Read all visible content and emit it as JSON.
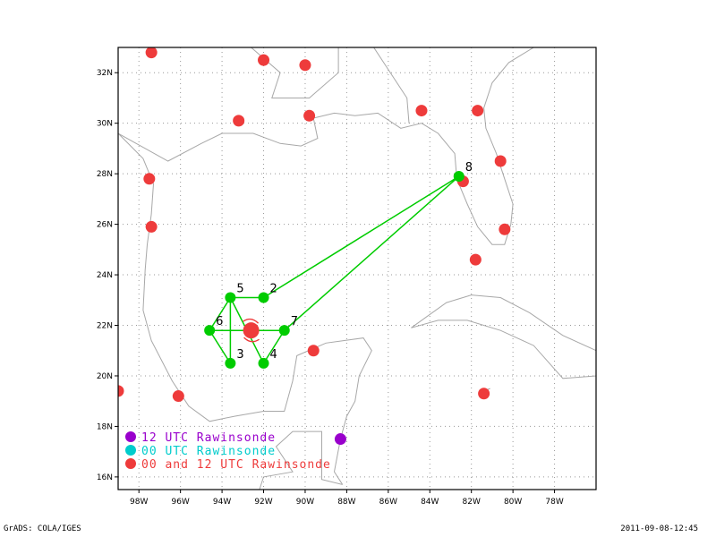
{
  "footer": {
    "left": "GrADS: COLA/IGES",
    "right": "2011-09-08-12:45"
  },
  "axes": {
    "lat_labels": [
      "16N",
      "18N",
      "20N",
      "22N",
      "24N",
      "26N",
      "28N",
      "30N",
      "32N"
    ],
    "lon_labels": [
      "98W",
      "96W",
      "94W",
      "92W",
      "90W",
      "88W",
      "86W",
      "84W",
      "82W",
      "80W",
      "78W"
    ],
    "lat_values": [
      16,
      18,
      20,
      22,
      24,
      26,
      28,
      30,
      32
    ],
    "lon_values": [
      -98,
      -96,
      -94,
      -92,
      -90,
      -88,
      -86,
      -84,
      -82,
      -80,
      -78
    ],
    "lon_range": [
      -99,
      -76
    ],
    "lat_range": [
      15.5,
      33
    ],
    "grid": true
  },
  "legend": [
    {
      "label": "12 UTC Rawinsonde",
      "color": "#9900cc"
    },
    {
      "label": "00 UTC Rawinsonde",
      "color": "#00cccc"
    },
    {
      "label": "00 and 12 UTC Rawinsonde",
      "color": "#ee3b3b"
    }
  ],
  "colors": {
    "coast": "#a8a8a8",
    "grid": "#999999",
    "track": "#00cc00",
    "rawinsonde_both": "#ee3b3b",
    "rawinsonde_12": "#9900cc",
    "storm_center": "#ee3b3b"
  },
  "storm_center": {
    "lon": -92.6,
    "lat": 21.8
  },
  "drop_points": [
    {
      "id": "2",
      "lon": -92.0,
      "lat": 23.1
    },
    {
      "id": "3",
      "lon": -93.6,
      "lat": 20.5
    },
    {
      "id": "4",
      "lon": -92.0,
      "lat": 20.5
    },
    {
      "id": "5",
      "lon": -93.6,
      "lat": 23.1
    },
    {
      "id": "6",
      "lon": -94.6,
      "lat": 21.8
    },
    {
      "id": "7",
      "lon": -91.0,
      "lat": 21.8
    },
    {
      "id": "8",
      "lon": -82.6,
      "lat": 27.9
    }
  ],
  "flight_track": [
    "6",
    "3",
    "5",
    "6",
    "7",
    "8",
    "2",
    "5",
    "4",
    "7"
  ],
  "rawinsondes_both": [
    {
      "lon": -97.4,
      "lat": 32.8
    },
    {
      "lon": -92.0,
      "lat": 32.5
    },
    {
      "lon": -90.0,
      "lat": 32.3
    },
    {
      "lon": -93.2,
      "lat": 30.1
    },
    {
      "lon": -89.8,
      "lat": 30.3
    },
    {
      "lon": -84.4,
      "lat": 30.5
    },
    {
      "lon": -81.7,
      "lat": 30.5
    },
    {
      "lon": -80.6,
      "lat": 28.5
    },
    {
      "lon": -82.4,
      "lat": 27.7
    },
    {
      "lon": -80.4,
      "lat": 25.8
    },
    {
      "lon": -81.8,
      "lat": 24.6
    },
    {
      "lon": -97.5,
      "lat": 27.8
    },
    {
      "lon": -97.4,
      "lat": 25.9
    },
    {
      "lon": -99.0,
      "lat": 19.4
    },
    {
      "lon": -96.1,
      "lat": 19.2
    },
    {
      "lon": -89.6,
      "lat": 21.0
    },
    {
      "lon": -81.4,
      "lat": 19.3
    }
  ],
  "rawinsondes_12": [
    {
      "lon": -88.3,
      "lat": 17.5
    }
  ]
}
